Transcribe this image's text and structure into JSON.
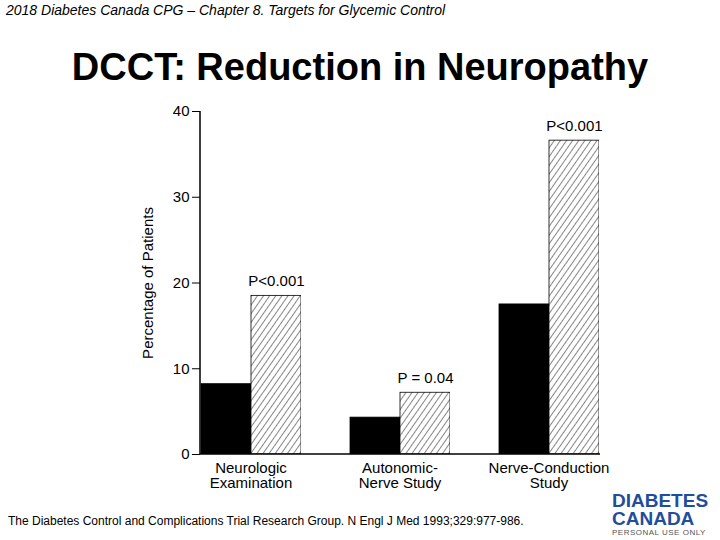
{
  "chart_data": {
    "type": "bar",
    "title": "DCCT: Reduction in Neuropathy",
    "categories": [
      "Neurologic\nExamination",
      "Autonomic-\nNerve Study",
      "Nerve-Conduction\nStudy"
    ],
    "series": [
      {
        "color": "#000000",
        "values": [
          8.2,
          4.3,
          17.5
        ]
      },
      {
        "color": "#444444",
        "line_style": "hatched",
        "values": [
          18.5,
          7.2,
          36.6
        ]
      }
    ],
    "p_values": [
      "P<0.001",
      "P = 0.04",
      "P<0.001"
    ],
    "y_label": "Percentage of Patients",
    "ylim": [
      0,
      40
    ],
    "yticks": [
      0,
      10,
      20,
      30,
      40
    ],
    "grid": false
  },
  "page": {
    "header": "2018 Diabetes Canada CPG – Chapter 8.  Targets for Glycemic Control",
    "source": "The Diabetes Control and Complications Trial Research Group. N Engl J Med 1993;329:977-986.",
    "logo": [
      "DIABETES",
      "CANADA"
    ],
    "logo_note": "PERSONAL USE ONLY"
  }
}
